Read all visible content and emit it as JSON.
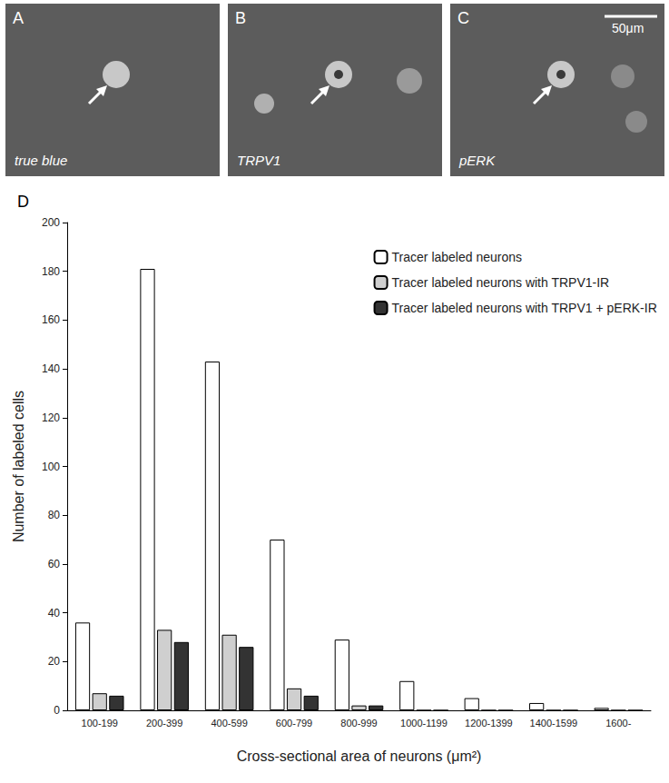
{
  "image_panels": [
    {
      "letter": "A",
      "label": "true blue"
    },
    {
      "letter": "B",
      "label": "TRPV1"
    },
    {
      "letter": "C",
      "label": "pERK",
      "scale_bar": "50μm"
    }
  ],
  "chart_data": {
    "type": "bar",
    "panel": "D",
    "x_label": "Cross-sectional area of neurons (μm²)",
    "y_label": "Number of labeled cells",
    "categories": [
      "100-199",
      "200-399",
      "400-599",
      "600-799",
      "800-999",
      "1000-1199",
      "1200-1399",
      "1400-1599",
      "1600-"
    ],
    "series": [
      {
        "name": "Tracer labeled neurons",
        "color": "#ffffff",
        "values": [
          36,
          181,
          143,
          70,
          29,
          12,
          5,
          3,
          1
        ]
      },
      {
        "name": "Tracer labeled neurons with TRPV1-IR",
        "color": "#cfcfcf",
        "values": [
          7,
          33,
          31,
          9,
          2,
          0,
          0,
          0,
          0
        ]
      },
      {
        "name": "Tracer labeled neurons with TRPV1 + pERK-IR",
        "color": "#333333",
        "values": [
          6,
          28,
          26,
          6,
          2,
          0,
          0,
          0,
          0
        ]
      }
    ],
    "ylim": [
      0,
      200
    ],
    "yticks": [
      0,
      20,
      40,
      60,
      80,
      100,
      120,
      140,
      160,
      180,
      200
    ],
    "grid": false,
    "legend": "upper right"
  }
}
